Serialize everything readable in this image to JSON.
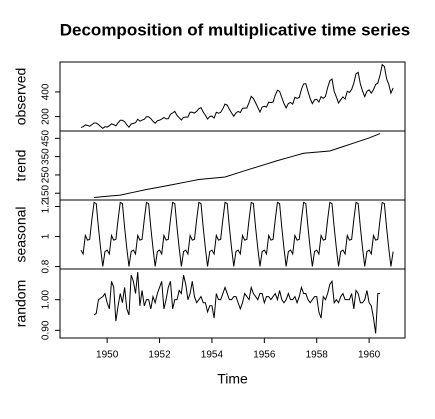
{
  "chart_data": [
    {
      "type": "line",
      "title": "Decomposition of multiplicative time series",
      "ylabel": "observed",
      "color": "#000000",
      "xlim": [
        1948.2,
        1961.37
      ],
      "ylim": [
        83,
        643
      ],
      "yticks": [
        200,
        400
      ],
      "x": [
        1949,
        1949.083,
        1949.167,
        1949.25,
        1949.333,
        1949.417,
        1949.5,
        1949.583,
        1949.667,
        1949.75,
        1949.833,
        1949.917,
        1950,
        1950.083,
        1950.167,
        1950.25,
        1950.333,
        1950.417,
        1950.5,
        1950.583,
        1950.667,
        1950.75,
        1950.833,
        1950.917,
        1951,
        1951.083,
        1951.167,
        1951.25,
        1951.333,
        1951.417,
        1951.5,
        1951.583,
        1951.667,
        1951.75,
        1951.833,
        1951.917,
        1952,
        1952.083,
        1952.167,
        1952.25,
        1952.333,
        1952.417,
        1952.5,
        1952.583,
        1952.667,
        1952.75,
        1952.833,
        1952.917,
        1953,
        1953.083,
        1953.167,
        1953.25,
        1953.333,
        1953.417,
        1953.5,
        1953.583,
        1953.667,
        1953.75,
        1953.833,
        1953.917,
        1954,
        1954.083,
        1954.167,
        1954.25,
        1954.333,
        1954.417,
        1954.5,
        1954.583,
        1954.667,
        1954.75,
        1954.833,
        1954.917,
        1955,
        1955.083,
        1955.167,
        1955.25,
        1955.333,
        1955.417,
        1955.5,
        1955.583,
        1955.667,
        1955.75,
        1955.833,
        1955.917,
        1956,
        1956.083,
        1956.167,
        1956.25,
        1956.333,
        1956.417,
        1956.5,
        1956.583,
        1956.667,
        1956.75,
        1956.833,
        1956.917,
        1957,
        1957.083,
        1957.167,
        1957.25,
        1957.333,
        1957.417,
        1957.5,
        1957.583,
        1957.667,
        1957.75,
        1957.833,
        1957.917,
        1958,
        1958.083,
        1958.167,
        1958.25,
        1958.333,
        1958.417,
        1958.5,
        1958.583,
        1958.667,
        1958.75,
        1958.833,
        1958.917,
        1959,
        1959.083,
        1959.167,
        1959.25,
        1959.333,
        1959.417,
        1959.5,
        1959.583,
        1959.667,
        1959.75,
        1959.833,
        1959.917,
        1960,
        1960.083,
        1960.167,
        1960.25,
        1960.333,
        1960.417,
        1960.5,
        1960.583,
        1960.667,
        1960.75,
        1960.833,
        1960.917
      ],
      "values": [
        112,
        118,
        132,
        129,
        121,
        135,
        148,
        148,
        136,
        119,
        104,
        118,
        115,
        126,
        141,
        135,
        125,
        149,
        170,
        170,
        158,
        133,
        114,
        140,
        145,
        150,
        178,
        163,
        172,
        178,
        199,
        199,
        184,
        162,
        146,
        166,
        171,
        180,
        193,
        181,
        183,
        218,
        230,
        242,
        209,
        191,
        172,
        194,
        196,
        196,
        236,
        235,
        229,
        243,
        264,
        272,
        237,
        211,
        180,
        201,
        204,
        188,
        235,
        227,
        234,
        264,
        302,
        293,
        259,
        229,
        203,
        229,
        242,
        233,
        267,
        269,
        270,
        315,
        364,
        347,
        312,
        274,
        237,
        278,
        284,
        277,
        317,
        313,
        318,
        374,
        413,
        405,
        355,
        306,
        271,
        306,
        315,
        301,
        356,
        348,
        355,
        422,
        465,
        467,
        404,
        347,
        305,
        336,
        340,
        318,
        362,
        348,
        363,
        435,
        491,
        505,
        404,
        359,
        310,
        337,
        360,
        342,
        406,
        396,
        420,
        472,
        548,
        559,
        463,
        407,
        362,
        405,
        417,
        391,
        419,
        461,
        472,
        535,
        622,
        606,
        508,
        461,
        390,
        432
      ]
    },
    {
      "type": "line",
      "ylabel": "trend",
      "color": "#000000",
      "xlim": [
        1948.2,
        1961.37
      ],
      "ylim": [
        113,
        490
      ],
      "yticks": [
        150,
        250,
        350,
        450
      ],
      "x": [
        1949.5,
        1950,
        1950.5,
        1951,
        1951.5,
        1952,
        1952.5,
        1953,
        1953.5,
        1954,
        1954.5,
        1955,
        1955.5,
        1956,
        1956.5,
        1957,
        1957.5,
        1958,
        1958.5,
        1959,
        1959.5,
        1960,
        1960.417
      ],
      "values": [
        126.7,
        133.2,
        139.7,
        155,
        170.2,
        183.6,
        197,
        211,
        225,
        232,
        238.9,
        261.5,
        284,
        306,
        328.3,
        348.4,
        368.4,
        374.7,
        381,
        404.6,
        428.3,
        452,
        476
      ]
    },
    {
      "type": "line",
      "ylabel": "seasonal",
      "color": "#000000",
      "xlim": [
        1948.2,
        1961.37
      ],
      "ylim": [
        0.784,
        1.243
      ],
      "yticks": [
        0.8,
        1.0,
        1.2
      ],
      "x": [
        1949,
        1949.083,
        1949.167,
        1949.25,
        1949.333,
        1949.417,
        1949.5,
        1949.583,
        1949.667,
        1949.75,
        1949.833,
        1949.917,
        1950,
        1950.083,
        1950.167,
        1950.25,
        1950.333,
        1950.417,
        1950.5,
        1950.583,
        1950.667,
        1950.75,
        1950.833,
        1950.917,
        1951,
        1951.083,
        1951.167,
        1951.25,
        1951.333,
        1951.417,
        1951.5,
        1951.583,
        1951.667,
        1951.75,
        1951.833,
        1951.917,
        1952,
        1952.083,
        1952.167,
        1952.25,
        1952.333,
        1952.417,
        1952.5,
        1952.583,
        1952.667,
        1952.75,
        1952.833,
        1952.917,
        1953,
        1953.083,
        1953.167,
        1953.25,
        1953.333,
        1953.417,
        1953.5,
        1953.583,
        1953.667,
        1953.75,
        1953.833,
        1953.917,
        1954,
        1954.083,
        1954.167,
        1954.25,
        1954.333,
        1954.417,
        1954.5,
        1954.583,
        1954.667,
        1954.75,
        1954.833,
        1954.917,
        1955,
        1955.083,
        1955.167,
        1955.25,
        1955.333,
        1955.417,
        1955.5,
        1955.583,
        1955.667,
        1955.75,
        1955.833,
        1955.917,
        1956,
        1956.083,
        1956.167,
        1956.25,
        1956.333,
        1956.417,
        1956.5,
        1956.583,
        1956.667,
        1956.75,
        1956.833,
        1956.917,
        1957,
        1957.083,
        1957.167,
        1957.25,
        1957.333,
        1957.417,
        1957.5,
        1957.583,
        1957.667,
        1957.75,
        1957.833,
        1957.917,
        1958,
        1958.083,
        1958.167,
        1958.25,
        1958.333,
        1958.417,
        1958.5,
        1958.583,
        1958.667,
        1958.75,
        1958.833,
        1958.917,
        1959,
        1959.083,
        1959.167,
        1959.25,
        1959.333,
        1959.417,
        1959.5,
        1959.583,
        1959.667,
        1959.75,
        1959.833,
        1959.917,
        1960,
        1960.083,
        1960.167,
        1960.25,
        1960.333,
        1960.417,
        1960.5,
        1960.583,
        1960.667,
        1960.75,
        1960.833,
        1960.917
      ],
      "values": [
        0.91,
        0.884,
        1.007,
        0.976,
        0.981,
        1.113,
        1.227,
        1.219,
        1.06,
        0.922,
        0.801,
        0.9,
        0.91,
        0.884,
        1.007,
        0.976,
        0.981,
        1.113,
        1.227,
        1.219,
        1.06,
        0.922,
        0.801,
        0.9,
        0.91,
        0.884,
        1.007,
        0.976,
        0.981,
        1.113,
        1.227,
        1.219,
        1.06,
        0.922,
        0.801,
        0.9,
        0.91,
        0.884,
        1.007,
        0.976,
        0.981,
        1.113,
        1.227,
        1.219,
        1.06,
        0.922,
        0.801,
        0.9,
        0.91,
        0.884,
        1.007,
        0.976,
        0.981,
        1.113,
        1.227,
        1.219,
        1.06,
        0.922,
        0.801,
        0.9,
        0.91,
        0.884,
        1.007,
        0.976,
        0.981,
        1.113,
        1.227,
        1.219,
        1.06,
        0.922,
        0.801,
        0.9,
        0.91,
        0.884,
        1.007,
        0.976,
        0.981,
        1.113,
        1.227,
        1.219,
        1.06,
        0.922,
        0.801,
        0.9,
        0.91,
        0.884,
        1.007,
        0.976,
        0.981,
        1.113,
        1.227,
        1.219,
        1.06,
        0.922,
        0.801,
        0.9,
        0.91,
        0.884,
        1.007,
        0.976,
        0.981,
        1.113,
        1.227,
        1.219,
        1.06,
        0.922,
        0.801,
        0.9,
        0.91,
        0.884,
        1.007,
        0.976,
        0.981,
        1.113,
        1.227,
        1.219,
        1.06,
        0.922,
        0.801,
        0.9,
        0.91,
        0.884,
        1.007,
        0.976,
        0.981,
        1.113,
        1.227,
        1.219,
        1.06,
        0.922,
        0.801,
        0.9,
        0.91,
        0.884,
        1.007,
        0.976,
        0.981,
        1.113,
        1.227,
        1.219,
        1.06,
        0.922,
        0.801,
        0.9
      ]
    },
    {
      "type": "line",
      "ylabel": "random",
      "xlabel": "Time",
      "color": "#000000",
      "xlim": [
        1948.2,
        1961.37
      ],
      "ylim": [
        0.875,
        1.1
      ],
      "yticks": [
        {
          "value": 0.9,
          "label": "0.90"
        },
        {
          "value": 1.0,
          "label": "1.00"
        }
      ],
      "xticks": [
        1950,
        1952,
        1954,
        1956,
        1958,
        1960
      ],
      "x": [
        1949.5,
        1949.583,
        1949.667,
        1949.75,
        1949.833,
        1949.917,
        1950,
        1950.083,
        1950.167,
        1950.25,
        1950.333,
        1950.417,
        1950.5,
        1950.583,
        1950.667,
        1950.75,
        1950.833,
        1950.917,
        1951,
        1951.083,
        1951.167,
        1951.25,
        1951.333,
        1951.417,
        1951.5,
        1951.583,
        1951.667,
        1951.75,
        1951.833,
        1951.917,
        1952,
        1952.083,
        1952.167,
        1952.25,
        1952.333,
        1952.417,
        1952.5,
        1952.583,
        1952.667,
        1952.75,
        1952.833,
        1952.917,
        1953,
        1953.083,
        1953.167,
        1953.25,
        1953.333,
        1953.417,
        1953.5,
        1953.583,
        1953.667,
        1953.75,
        1953.833,
        1953.917,
        1954,
        1954.083,
        1954.167,
        1954.25,
        1954.333,
        1954.417,
        1954.5,
        1954.583,
        1954.667,
        1954.75,
        1954.833,
        1954.917,
        1955,
        1955.083,
        1955.167,
        1955.25,
        1955.333,
        1955.417,
        1955.5,
        1955.583,
        1955.667,
        1955.75,
        1955.833,
        1955.917,
        1956,
        1956.083,
        1956.167,
        1956.25,
        1956.333,
        1956.417,
        1956.5,
        1956.583,
        1956.667,
        1956.75,
        1956.833,
        1956.917,
        1957,
        1957.083,
        1957.167,
        1957.25,
        1957.333,
        1957.417,
        1957.5,
        1957.583,
        1957.667,
        1957.75,
        1957.833,
        1957.917,
        1958,
        1958.083,
        1958.167,
        1958.25,
        1958.333,
        1958.417,
        1958.5,
        1958.583,
        1958.667,
        1958.75,
        1958.833,
        1958.917,
        1959,
        1959.083,
        1959.167,
        1959.25,
        1959.333,
        1959.417,
        1959.5,
        1959.583,
        1959.667,
        1959.75,
        1959.833,
        1959.917,
        1960,
        1960.083,
        1960.167,
        1960.25,
        1960.333,
        1960.417
      ],
      "values": [
        0.95,
        0.955,
        1.0,
        1.005,
        1.01,
        1.02,
        0.99,
        0.97,
        1.06,
        1.04,
        0.93,
        0.98,
        1.02,
        0.99,
        1.04,
        0.97,
        0.95,
        1.08,
        1.06,
        1.02,
        1.09,
        0.98,
        1.03,
        0.98,
        1.0,
        1.0,
        0.97,
        1.01,
        0.99,
        1.02,
        1.04,
        1.06,
        0.97,
        1.0,
        1.04,
        1.06,
        0.97,
        1.0,
        1.0,
        1.03,
        1.02,
        1.08,
        1.05,
        1.0,
        1.02,
        1.06,
        1.01,
        0.99,
        1.0,
        1.01,
        0.99,
        0.99,
        0.96,
        0.98,
        0.98,
        0.94,
        1.02,
        1.0,
        1.0,
        1.02,
        1.04,
        1.02,
        1.0,
        1.0,
        1.01,
        1.01,
        0.99,
        0.97,
        0.99,
        1.02,
        1.01,
        1.0,
        1.04,
        1.02,
        1.01,
        1.0,
        1.02,
        1.02,
        0.99,
        1.01,
        1.01,
        1.0,
        1.01,
        1.02,
        1.0,
        1.03,
        1.0,
        0.99,
        1.0,
        1.02,
        1.0,
        1.0,
        1.01,
        0.99,
        1.01,
        1.04,
        1.02,
        1.02,
        1.0,
        0.99,
        1.0,
        1.01,
        1.01,
        0.96,
        0.94,
        1.01,
        1.0,
        1.02,
        1.05,
        1.06,
        0.99,
        1.0,
        0.99,
        1.01,
        1.02,
        1.0,
        1.0,
        1.0,
        1.02,
        0.97,
        1.03,
        1.02,
        0.99,
        0.99,
        1.0,
        1.03,
        0.99,
        0.98,
        0.94,
        0.89,
        1.02,
        1.02
      ]
    }
  ]
}
